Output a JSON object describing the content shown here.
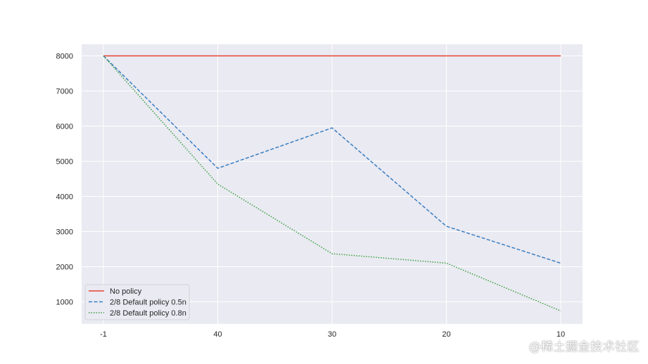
{
  "chart_data": {
    "type": "line",
    "categories": [
      "-1",
      "40",
      "30",
      "20",
      "10"
    ],
    "series": [
      {
        "name": "No policy",
        "values": [
          8000,
          8000,
          8000,
          8000,
          8000
        ],
        "color": "#e8412f",
        "style": "solid"
      },
      {
        "name": "2/8 Default policy 0.5n",
        "values": [
          8000,
          4800,
          5950,
          3150,
          2100
        ],
        "color": "#3a7ec2",
        "style": "dashed"
      },
      {
        "name": "2/8 Default policy 0.8n",
        "values": [
          8000,
          4350,
          2370,
          2100,
          740
        ],
        "color": "#3aa040",
        "style": "dotted"
      }
    ],
    "yticks": [
      1000,
      2000,
      3000,
      4000,
      5000,
      6000,
      7000,
      8000
    ],
    "ylim": [
      370,
      8330
    ],
    "grid": true,
    "legend_position": "bottom-left",
    "background": "#eaeaf2"
  },
  "watermark": "@稀土掘金技术社区"
}
